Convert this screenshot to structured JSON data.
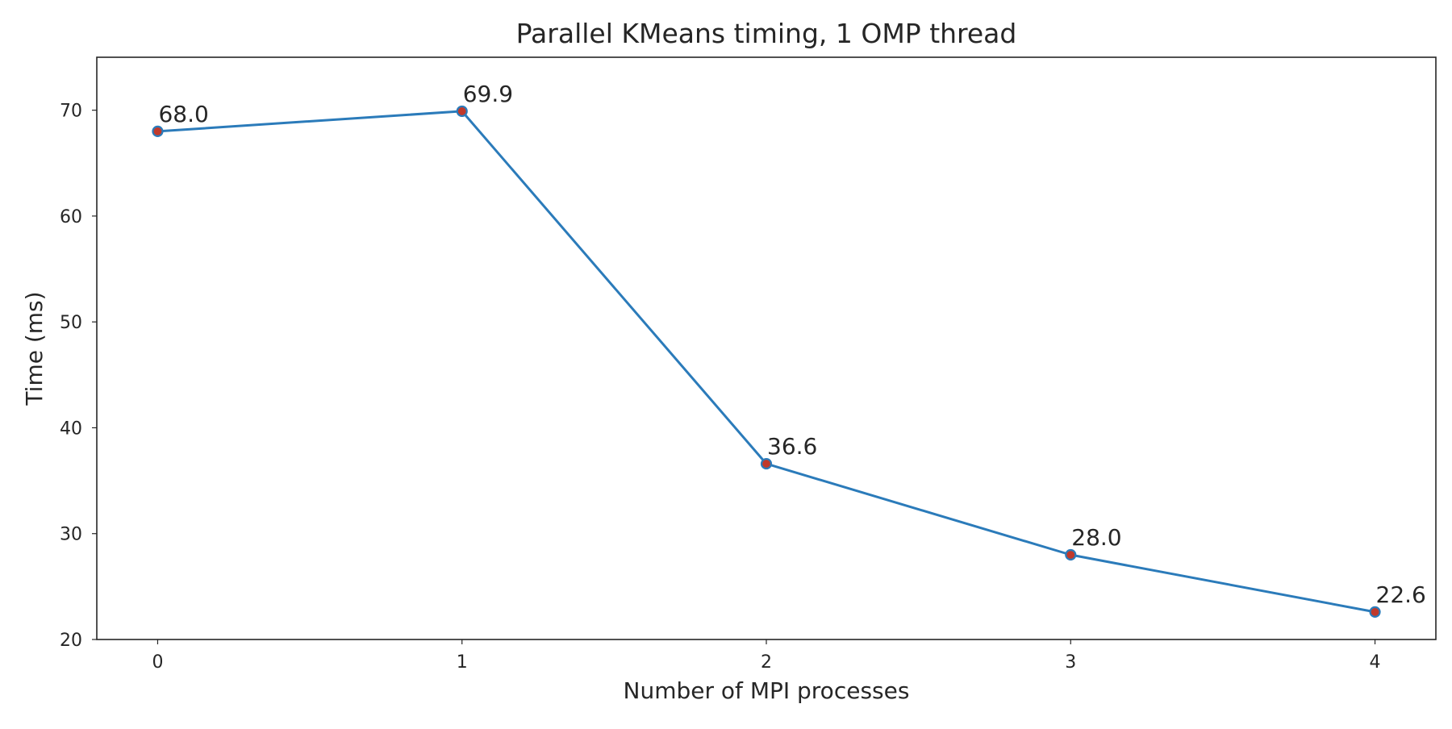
{
  "chart_data": {
    "type": "line",
    "title": "Parallel KMeans timing, 1 OMP thread",
    "xlabel": "Number of MPI processes",
    "ylabel": "Time (ms)",
    "x": [
      0,
      1,
      2,
      3,
      4
    ],
    "series": [
      {
        "values": [
          68.0,
          69.9,
          36.6,
          28.0,
          22.6
        ],
        "labels": [
          "68.0",
          "69.9",
          "36.6",
          "28.0",
          "22.6"
        ],
        "line_color": "#2b7bba",
        "marker_face_color": "#c0392b",
        "marker_edge_color": "#2b7bba"
      }
    ],
    "xticks": [
      0,
      1,
      2,
      3,
      4
    ],
    "xtick_labels": [
      "0",
      "1",
      "2",
      "3",
      "4"
    ],
    "yticks": [
      20,
      30,
      40,
      50,
      60,
      70
    ],
    "ytick_labels": [
      "20",
      "30",
      "40",
      "50",
      "60",
      "70"
    ],
    "xlim": [
      -0.2,
      4.2
    ],
    "ylim": [
      20,
      75
    ],
    "grid": false,
    "legend": false
  }
}
